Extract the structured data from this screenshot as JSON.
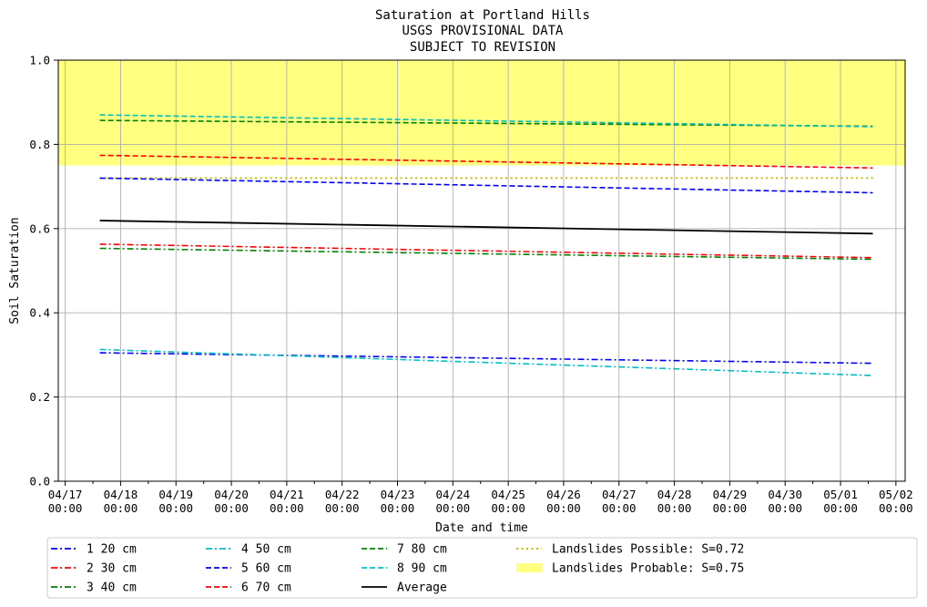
{
  "chart_data": {
    "type": "line",
    "title": [
      "Saturation at Portland Hills",
      "USGS PROVISIONAL DATA",
      "SUBJECT TO REVISION"
    ],
    "xlabel": "Date and time",
    "ylabel": "Soil Saturation",
    "xlim": [
      "2025-04-16T21:00",
      "2025-05-02T04:00"
    ],
    "ylim": [
      0.0,
      1.0
    ],
    "x_ticks": [
      "04/17\n00:00",
      "04/18\n00:00",
      "04/19\n00:00",
      "04/20\n00:00",
      "04/21\n00:00",
      "04/22\n00:00",
      "04/23\n00:00",
      "04/24\n00:00",
      "04/25\n00:00",
      "04/26\n00:00",
      "04/27\n00:00",
      "04/28\n00:00",
      "04/29\n00:00",
      "04/30\n00:00",
      "05/01\n00:00",
      "05/02\n00:00"
    ],
    "y_ticks": [
      "0.0",
      "0.2",
      "0.4",
      "0.6",
      "0.8",
      "1.0"
    ],
    "grid": true,
    "legend_position": "below",
    "x": [
      "2025-04-17T15:00",
      "2025-05-01T14:00"
    ],
    "series": [
      {
        "name": "1 20 cm",
        "color": "#0000ff",
        "dash": "dashdot",
        "values": [
          0.305,
          0.28
        ]
      },
      {
        "name": "2 30 cm",
        "color": "#ff0000",
        "dash": "dashdot",
        "values": [
          0.563,
          0.531
        ]
      },
      {
        "name": "3 40 cm",
        "color": "#008000",
        "dash": "dashdot",
        "values": [
          0.553,
          0.527
        ]
      },
      {
        "name": "4 50 cm",
        "color": "#00bfbf",
        "dash": "dashdot",
        "values": [
          0.313,
          0.251
        ]
      },
      {
        "name": "5 60 cm",
        "color": "#0000ff",
        "dash": "dashed",
        "values": [
          0.72,
          0.685
        ]
      },
      {
        "name": "6 70 cm",
        "color": "#ff0000",
        "dash": "dashed",
        "values": [
          0.774,
          0.744
        ]
      },
      {
        "name": "7 80 cm",
        "color": "#008000",
        "dash": "dashed",
        "values": [
          0.857,
          0.843
        ]
      },
      {
        "name": "8 90 cm",
        "color": "#00bfbf",
        "dash": "dashed",
        "values": [
          0.87,
          0.842
        ]
      },
      {
        "name": "Average",
        "color": "#000000",
        "dash": "solid",
        "values": [
          0.619,
          0.588
        ]
      }
    ],
    "thresholds": [
      {
        "name": "Landslides Possible: S=0.72",
        "value": 0.72,
        "color": "#bfbf00",
        "style": "dotted-line"
      },
      {
        "name": "Landslides Probable: S=0.75",
        "value": 0.75,
        "color": "#ffff80",
        "style": "filled-region-above"
      }
    ]
  }
}
